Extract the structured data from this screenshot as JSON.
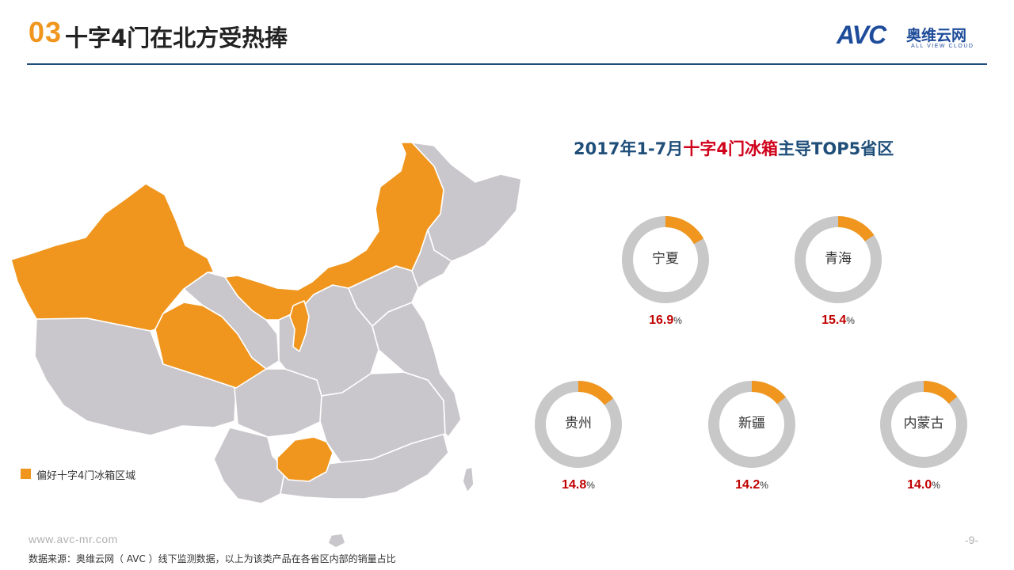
{
  "header": {
    "section_number": "03",
    "title": "十字4门在北方受热捧"
  },
  "logo": {
    "brand": "AVC",
    "brand_cn": "奥维云网",
    "brand_en": "ALL VIEW CLOUD"
  },
  "colors": {
    "accent_orange": "#F0961E",
    "title_blue": "#1F4E79",
    "highlight_red": "#D0021B",
    "value_red": "#C00000",
    "map_gray": "#C9C7CC",
    "ring_gray": "#C8C8C8"
  },
  "map": {
    "legend_label": "偏好十字4门冰箱区域",
    "highlighted_regions": [
      "新疆",
      "青海",
      "内蒙古",
      "宁夏",
      "贵州"
    ]
  },
  "chart_title": {
    "prefix": "2017年1-7月",
    "highlight": "十字4门冰箱",
    "suffix": "主导TOP5省区"
  },
  "chart_data": {
    "type": "pie",
    "title": "2017年1-7月十字4门冰箱主导TOP5省区",
    "unit": "%",
    "categories": [
      "宁夏",
      "青海",
      "贵州",
      "新疆",
      "内蒙古"
    ],
    "values": [
      16.9,
      15.4,
      14.8,
      14.2,
      14.0
    ],
    "items": [
      {
        "name": "宁夏",
        "value": "16.9",
        "pct": 16.9
      },
      {
        "name": "青海",
        "value": "15.4",
        "pct": 15.4
      },
      {
        "name": "贵州",
        "value": "14.8",
        "pct": 14.8
      },
      {
        "name": "新疆",
        "value": "14.2",
        "pct": 14.2
      },
      {
        "name": "内蒙古",
        "value": "14.0",
        "pct": 14.0
      }
    ],
    "percent_sign": "%"
  },
  "footer": {
    "url": "www.avc-mr.com",
    "source": "数据来源：奥维云网（ AVC ）线下监测数据，以上为该类产品在各省区内部的销量占比",
    "page": "-9-"
  }
}
